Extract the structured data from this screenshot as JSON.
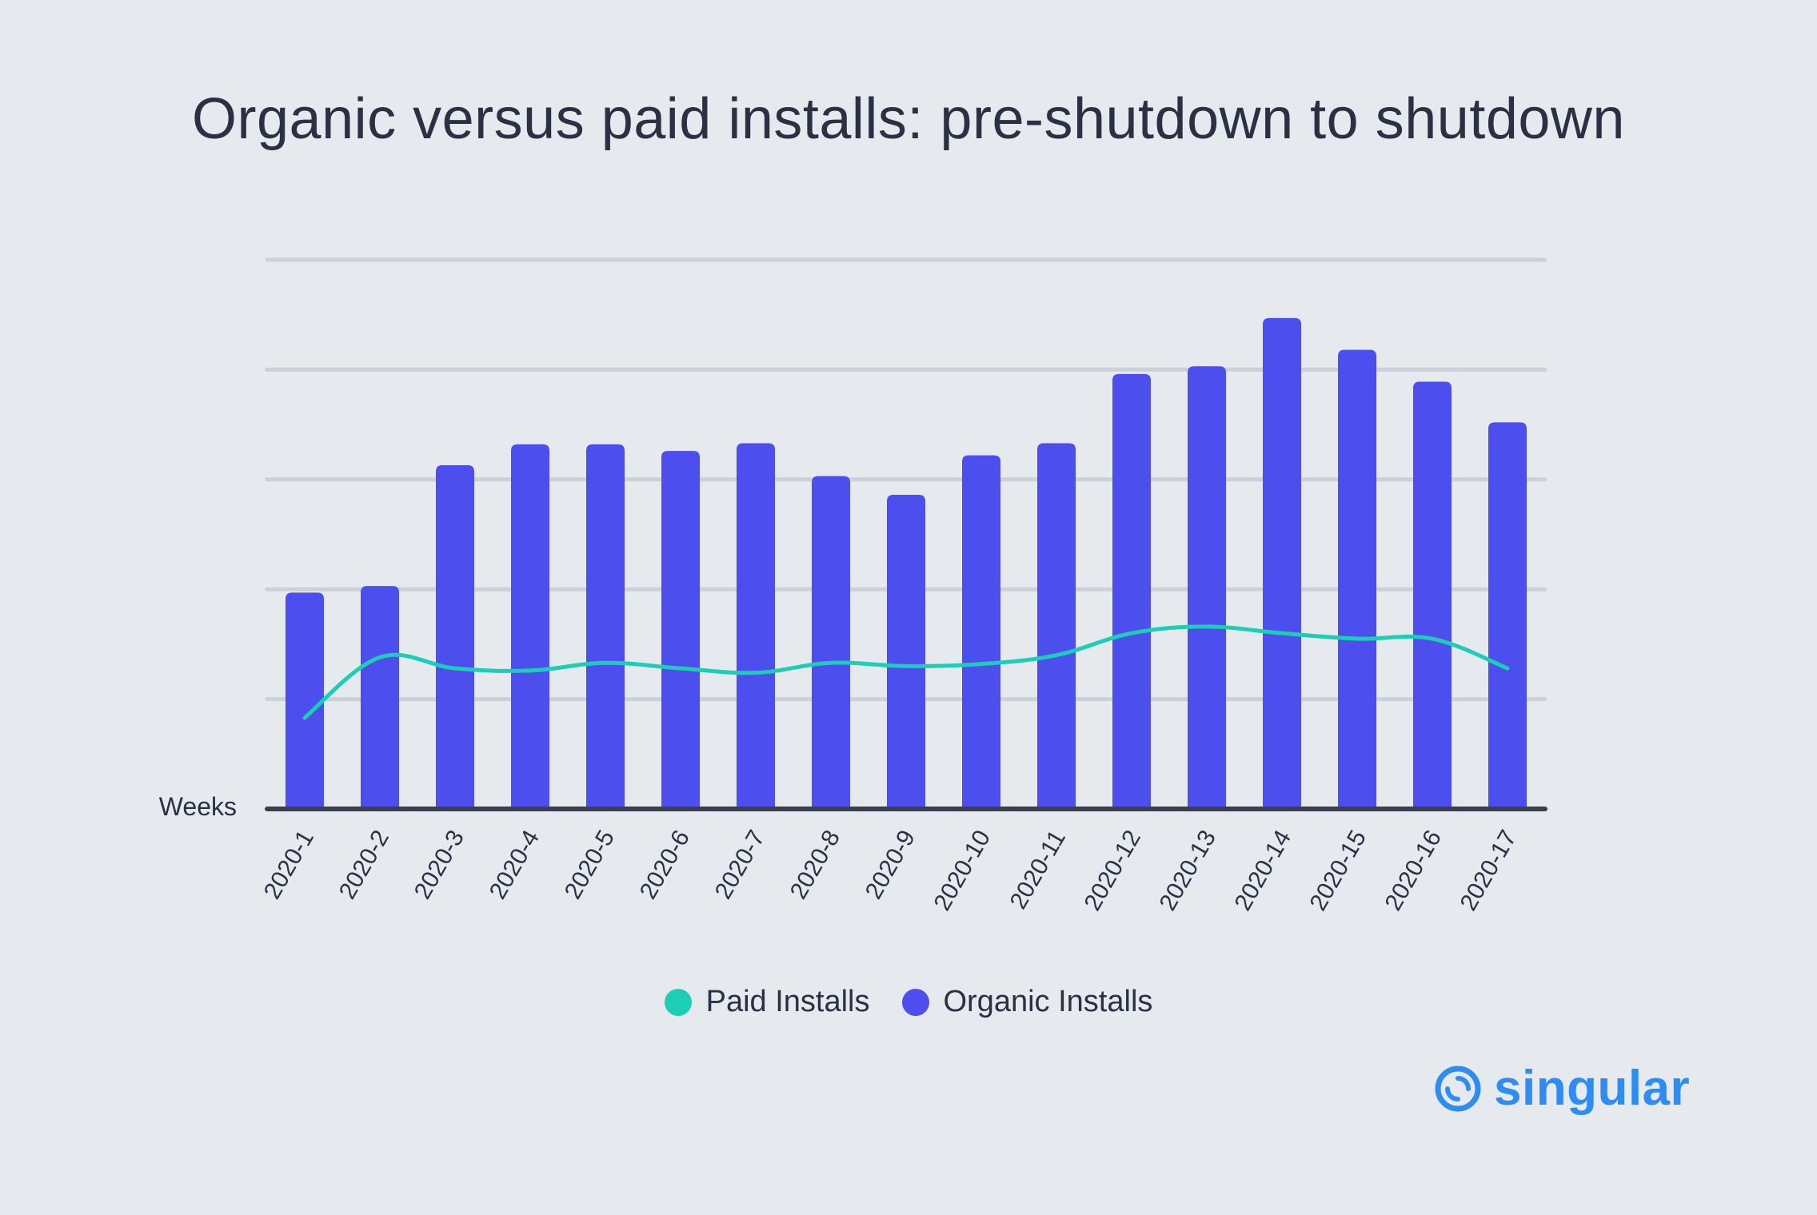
{
  "chart_data": {
    "type": "bar",
    "title": "Organic versus paid installs: pre-shutdown to shutdown",
    "xlabel": "Weeks",
    "ylabel": "",
    "categories": [
      "2020-1",
      "2020-2",
      "2020-3",
      "2020-4",
      "2020-5",
      "2020-6",
      "2020-7",
      "2020-8",
      "2020-9",
      "2020-10",
      "2020-11",
      "2020-12",
      "2020-13",
      "2020-14",
      "2020-15",
      "2020-16",
      "2020-17"
    ],
    "ylim": [
      0,
      5
    ],
    "grid": true,
    "legend_position": "bottom-center",
    "series": [
      {
        "name": "Organic Installs",
        "type": "bar",
        "color": "#4d4eee",
        "values": [
          1.97,
          2.03,
          3.13,
          3.32,
          3.32,
          3.26,
          3.33,
          3.03,
          2.86,
          3.22,
          3.33,
          3.96,
          4.03,
          4.47,
          4.18,
          3.89,
          3.52
        ]
      },
      {
        "name": "Paid Installs",
        "type": "line",
        "color": "#1ccfb4",
        "values": [
          0.83,
          1.38,
          1.28,
          1.26,
          1.33,
          1.28,
          1.24,
          1.33,
          1.3,
          1.32,
          1.4,
          1.6,
          1.66,
          1.6,
          1.55,
          1.55,
          1.28
        ]
      }
    ]
  },
  "legend": {
    "paid_label": "Paid Installs",
    "organic_label": "Organic Installs",
    "paid_color": "#1ccfb4",
    "organic_color": "#4d4eee"
  },
  "logo": {
    "text": "singular",
    "icon": "singular-logo-icon",
    "color": "#2f8cf0"
  }
}
